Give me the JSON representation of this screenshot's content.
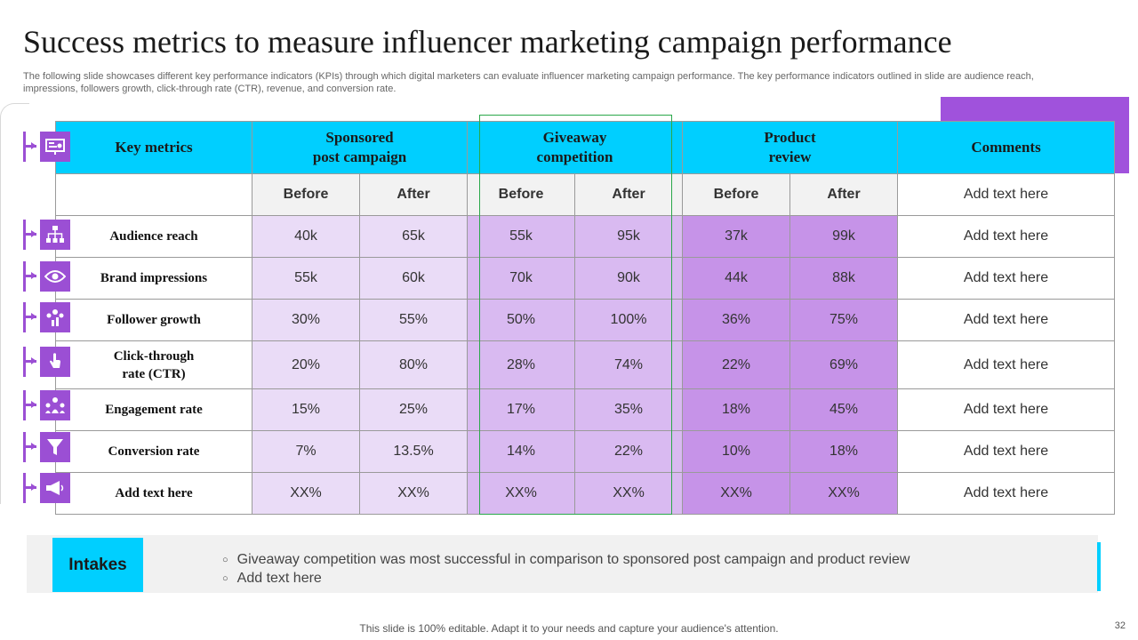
{
  "title": "Success metrics to measure influencer marketing campaign performance",
  "subtitle": "The following slide showcases different key performance indicators (KPIs) through which digital marketers can evaluate influencer marketing campaign performance. The key performance indicators outlined in slide are audience reach, impressions, followers growth, click-through rate (CTR), revenue, and conversion rate.",
  "table": {
    "headers": {
      "key_metrics": "Key metrics",
      "sponsored_line1": "Sponsored",
      "sponsored_line2": "post campaign",
      "giveaway_line1": "Giveaway",
      "giveaway_line2": "competition",
      "product_line1": "Product",
      "product_line2": "review",
      "comments": "Comments"
    },
    "sub_headers": {
      "before": "Before",
      "after": "After",
      "comments_placeholder": "Add text here"
    },
    "rows": [
      {
        "metric": "Audience reach",
        "sp_before": "40k",
        "sp_after": "65k",
        "gv_before": "55k",
        "gv_after": "95k",
        "pr_before": "37k",
        "pr_after": "99k",
        "comment": "Add text here"
      },
      {
        "metric": "Brand impressions",
        "sp_before": "55k",
        "sp_after": "60k",
        "gv_before": "70k",
        "gv_after": "90k",
        "pr_before": "44k",
        "pr_after": "88k",
        "comment": "Add text here"
      },
      {
        "metric": "Follower growth",
        "sp_before": "30%",
        "sp_after": "55%",
        "gv_before": "50%",
        "gv_after": "100%",
        "pr_before": "36%",
        "pr_after": "75%",
        "comment": "Add text here"
      },
      {
        "metric_line1": "Click-through",
        "metric_line2": "rate (CTR)",
        "sp_before": "20%",
        "sp_after": "80%",
        "gv_before": "28%",
        "gv_after": "74%",
        "pr_before": "22%",
        "pr_after": "69%",
        "comment": "Add text here"
      },
      {
        "metric": "Engagement rate",
        "sp_before": "15%",
        "sp_after": "25%",
        "gv_before": "17%",
        "gv_after": "35%",
        "pr_before": "18%",
        "pr_after": "45%",
        "comment": "Add text here"
      },
      {
        "metric": "Conversion rate",
        "sp_before": "7%",
        "sp_after": "13.5%",
        "gv_before": "14%",
        "gv_after": "22%",
        "pr_before": "10%",
        "pr_after": "18%",
        "comment": "Add text here"
      },
      {
        "metric": "Add text here",
        "sp_before": "XX%",
        "sp_after": "XX%",
        "gv_before": "XX%",
        "gv_after": "XX%",
        "pr_before": "XX%",
        "pr_after": "XX%",
        "comment": "Add text here"
      }
    ]
  },
  "icons": [
    "presentation-icon",
    "hierarchy-icon",
    "eye-icon",
    "people-growth-icon",
    "click-hand-icon",
    "team-engagement-icon",
    "funnel-icon",
    "megaphone-icon"
  ],
  "intakes": {
    "label": "Intakes",
    "bullets": [
      "Giveaway competition was most successful in comparison to sponsored post campaign and product review",
      "Add text here"
    ]
  },
  "footer": "This slide is 100% editable. Adapt it to your needs and capture your audience's attention.",
  "page_number": "32",
  "colors": {
    "header_cyan": "#00cfff",
    "accent_purple": "#9b4fd4",
    "sponsored_fill": "#eadcf7",
    "giveaway_fill": "#d9baf1",
    "product_fill": "#c693e8",
    "highlight_frame": "#2aa84a"
  }
}
